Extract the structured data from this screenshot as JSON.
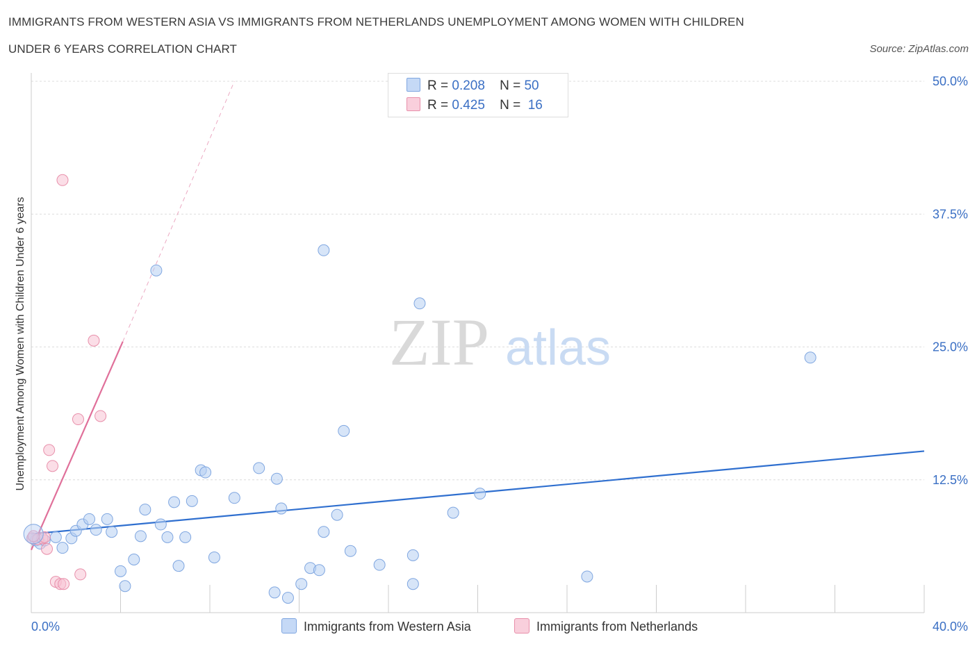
{
  "header": {
    "title_line1": "IMMIGRANTS FROM WESTERN ASIA VS IMMIGRANTS FROM NETHERLANDS UNEMPLOYMENT AMONG WOMEN WITH CHILDREN",
    "title_line2": "UNDER 6 YEARS CORRELATION CHART",
    "source": "Source: ZipAtlas.com"
  },
  "legend": {
    "r_label": "R =",
    "n_label": "N =",
    "series1": {
      "r": "0.208",
      "n": "50"
    },
    "series2": {
      "r": "0.425",
      "n": "16"
    }
  },
  "colors": {
    "blue_fill": "#b7cff3",
    "blue_stroke": "#7fa6e0",
    "blue_line": "#2f6fcf",
    "pink_fill": "#f8c3d3",
    "pink_stroke": "#e88faa",
    "pink_line": "#e0709a",
    "axis_label": "#3a6fc4"
  },
  "chart_data": {
    "type": "scatter",
    "title": "IMMIGRANTS FROM WESTERN ASIA VS IMMIGRANTS FROM NETHERLANDS UNEMPLOYMENT AMONG WOMEN WITH CHILDREN UNDER 6 YEARS CORRELATION CHART",
    "xlabel": "",
    "ylabel": "Unemployment Among Women with Children Under 6 years",
    "xlim": [
      0,
      40
    ],
    "ylim": [
      0,
      50
    ],
    "x_tick_labels": [
      "0.0%",
      "40.0%"
    ],
    "y_ticks": [
      12.5,
      25.0,
      37.5,
      50.0
    ],
    "y_tick_labels": [
      "12.5%",
      "25.0%",
      "37.5%",
      "50.0%"
    ],
    "grid": true,
    "legend_position": "top-center",
    "watermark": {
      "zip": "ZIP",
      "atlas": "atlas"
    },
    "series": [
      {
        "name": "Immigrants from Western Asia",
        "color": "blue",
        "r": 0.208,
        "n": 50,
        "trend": {
          "x0": 0.0,
          "y0": 7.4,
          "x1": 40.0,
          "y1": 15.2,
          "dashed_to": null
        },
        "points": [
          [
            0.05,
            7.0
          ],
          [
            0.2,
            6.8
          ],
          [
            0.4,
            6.5
          ],
          [
            0.6,
            6.8
          ],
          [
            1.1,
            7.1
          ],
          [
            1.4,
            6.1
          ],
          [
            1.8,
            7.0
          ],
          [
            2.0,
            7.7
          ],
          [
            2.3,
            8.3
          ],
          [
            2.6,
            8.8
          ],
          [
            2.9,
            7.8
          ],
          [
            3.4,
            8.8
          ],
          [
            3.6,
            7.6
          ],
          [
            4.0,
            3.9
          ],
          [
            4.2,
            2.5
          ],
          [
            4.6,
            5.0
          ],
          [
            4.9,
            7.2
          ],
          [
            5.1,
            9.7
          ],
          [
            5.8,
            8.3
          ],
          [
            6.1,
            7.1
          ],
          [
            6.4,
            10.4
          ],
          [
            6.6,
            4.4
          ],
          [
            6.9,
            7.1
          ],
          [
            7.2,
            10.5
          ],
          [
            7.6,
            13.4
          ],
          [
            7.8,
            13.2
          ],
          [
            8.2,
            5.2
          ],
          [
            9.1,
            10.8
          ],
          [
            10.2,
            13.6
          ],
          [
            10.9,
            1.9
          ],
          [
            11.0,
            12.6
          ],
          [
            11.2,
            9.8
          ],
          [
            11.5,
            1.4
          ],
          [
            12.1,
            2.7
          ],
          [
            12.5,
            4.2
          ],
          [
            12.9,
            4.0
          ],
          [
            13.1,
            7.6
          ],
          [
            13.7,
            9.2
          ],
          [
            14.0,
            17.1
          ],
          [
            14.3,
            5.8
          ],
          [
            15.6,
            4.5
          ],
          [
            17.1,
            5.4
          ],
          [
            17.1,
            2.7
          ],
          [
            18.9,
            9.4
          ],
          [
            20.1,
            11.2
          ],
          [
            24.9,
            3.4
          ],
          [
            34.9,
            24.0
          ],
          [
            5.6,
            32.2
          ],
          [
            13.1,
            34.1
          ],
          [
            17.4,
            29.1
          ]
        ]
      },
      {
        "name": "Immigrants from Netherlands",
        "color": "pink",
        "r": 0.425,
        "n": 16,
        "trend": {
          "x0": 0.0,
          "y0": 5.9,
          "x1": 4.1,
          "y1": 25.5,
          "dashed_to": {
            "x": 9.1,
            "y": 50.0
          }
        },
        "points": [
          [
            0.05,
            7.0
          ],
          [
            0.3,
            6.9
          ],
          [
            0.5,
            7.0
          ],
          [
            0.7,
            6.0
          ],
          [
            0.8,
            15.3
          ],
          [
            0.95,
            13.8
          ],
          [
            1.1,
            2.9
          ],
          [
            1.3,
            2.7
          ],
          [
            1.45,
            2.7
          ],
          [
            2.1,
            18.2
          ],
          [
            2.2,
            3.6
          ],
          [
            2.8,
            25.6
          ],
          [
            3.1,
            18.5
          ],
          [
            1.4,
            40.7
          ],
          [
            0.1,
            7.2
          ],
          [
            0.6,
            7.1
          ]
        ]
      }
    ]
  },
  "bottom_legend": {
    "item1": "Immigrants from Western Asia",
    "item2": "Immigrants from Netherlands"
  }
}
